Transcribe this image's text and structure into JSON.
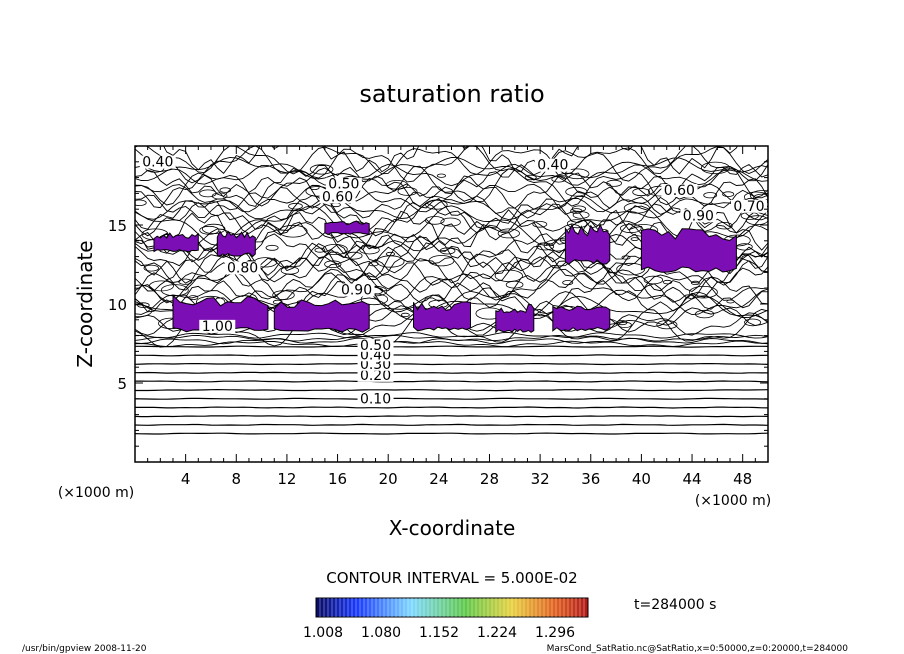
{
  "chart_data": {
    "type": "contour",
    "title": "saturation ratio",
    "xlabel": "X-coordinate",
    "ylabel": "Z-coordinate",
    "x_unit_label": "(×1000 m)",
    "z_unit_label": "(×1000 m)",
    "xlim": [
      0,
      50
    ],
    "ylim": [
      0,
      20
    ],
    "x_ticks": [
      "4",
      "8",
      "12",
      "16",
      "20",
      "24",
      "28",
      "32",
      "36",
      "40",
      "44",
      "48"
    ],
    "y_ticks": [
      "5",
      "10",
      "15"
    ],
    "contour_interval_text": "CONTOUR INTERVAL = 5.000E-02",
    "contour_labels": [
      {
        "text": "0.10",
        "x": 19.0,
        "z": 3.7
      },
      {
        "text": "0.20",
        "x": 19.0,
        "z": 5.2
      },
      {
        "text": "0.30",
        "x": 19.0,
        "z": 5.9
      },
      {
        "text": "0.40",
        "x": 19.0,
        "z": 6.5
      },
      {
        "text": "0.50",
        "x": 19.0,
        "z": 7.1
      },
      {
        "text": "0.90",
        "x": 17.5,
        "z": 10.6
      },
      {
        "text": "0.80",
        "x": 8.5,
        "z": 12.0
      },
      {
        "text": "1.00",
        "x": 6.5,
        "z": 8.3
      },
      {
        "text": "0.40",
        "x": 1.8,
        "z": 18.7
      },
      {
        "text": "0.40",
        "x": 33.0,
        "z": 18.5
      },
      {
        "text": "0.50",
        "x": 16.5,
        "z": 17.3
      },
      {
        "text": "0.60",
        "x": 16.0,
        "z": 16.5
      },
      {
        "text": "0.60",
        "x": 43.0,
        "z": 16.9
      },
      {
        "text": "0.70",
        "x": 48.5,
        "z": 15.9
      },
      {
        "text": "0.90",
        "x": 44.5,
        "z": 15.3
      }
    ],
    "colorbar": {
      "tick_labels": [
        "1.008",
        "1.080",
        "1.152",
        "1.224",
        "1.296"
      ],
      "colormap": "rainbow"
    },
    "time_label": "t=284000 s",
    "fill_color": "#7b0fb5",
    "supersaturated_regions": [
      {
        "x": [
          1.5,
          5.0
        ],
        "z": [
          13.3,
          14.4
        ]
      },
      {
        "x": [
          6.5,
          9.5
        ],
        "z": [
          13.0,
          14.5
        ]
      },
      {
        "x": [
          15.0,
          18.5
        ],
        "z": [
          14.4,
          15.2
        ]
      },
      {
        "x": [
          3.0,
          10.5
        ],
        "z": [
          8.2,
          10.4
        ]
      },
      {
        "x": [
          11.0,
          18.5
        ],
        "z": [
          8.2,
          10.1
        ]
      },
      {
        "x": [
          22.0,
          26.5
        ],
        "z": [
          8.3,
          10.0
        ]
      },
      {
        "x": [
          28.5,
          31.5
        ],
        "z": [
          8.2,
          9.8
        ]
      },
      {
        "x": [
          33.0,
          37.5
        ],
        "z": [
          8.3,
          9.8
        ]
      },
      {
        "x": [
          34.0,
          37.5
        ],
        "z": [
          12.5,
          14.8
        ]
      },
      {
        "x": [
          40.0,
          47.5
        ],
        "z": [
          12.0,
          14.5
        ]
      }
    ]
  },
  "footer": {
    "left": "/usr/bin/gpview  2008-11-20",
    "right": "MarsCond_SatRatio.nc@SatRatio,x=0:50000,z=0:20000,t=284000"
  }
}
